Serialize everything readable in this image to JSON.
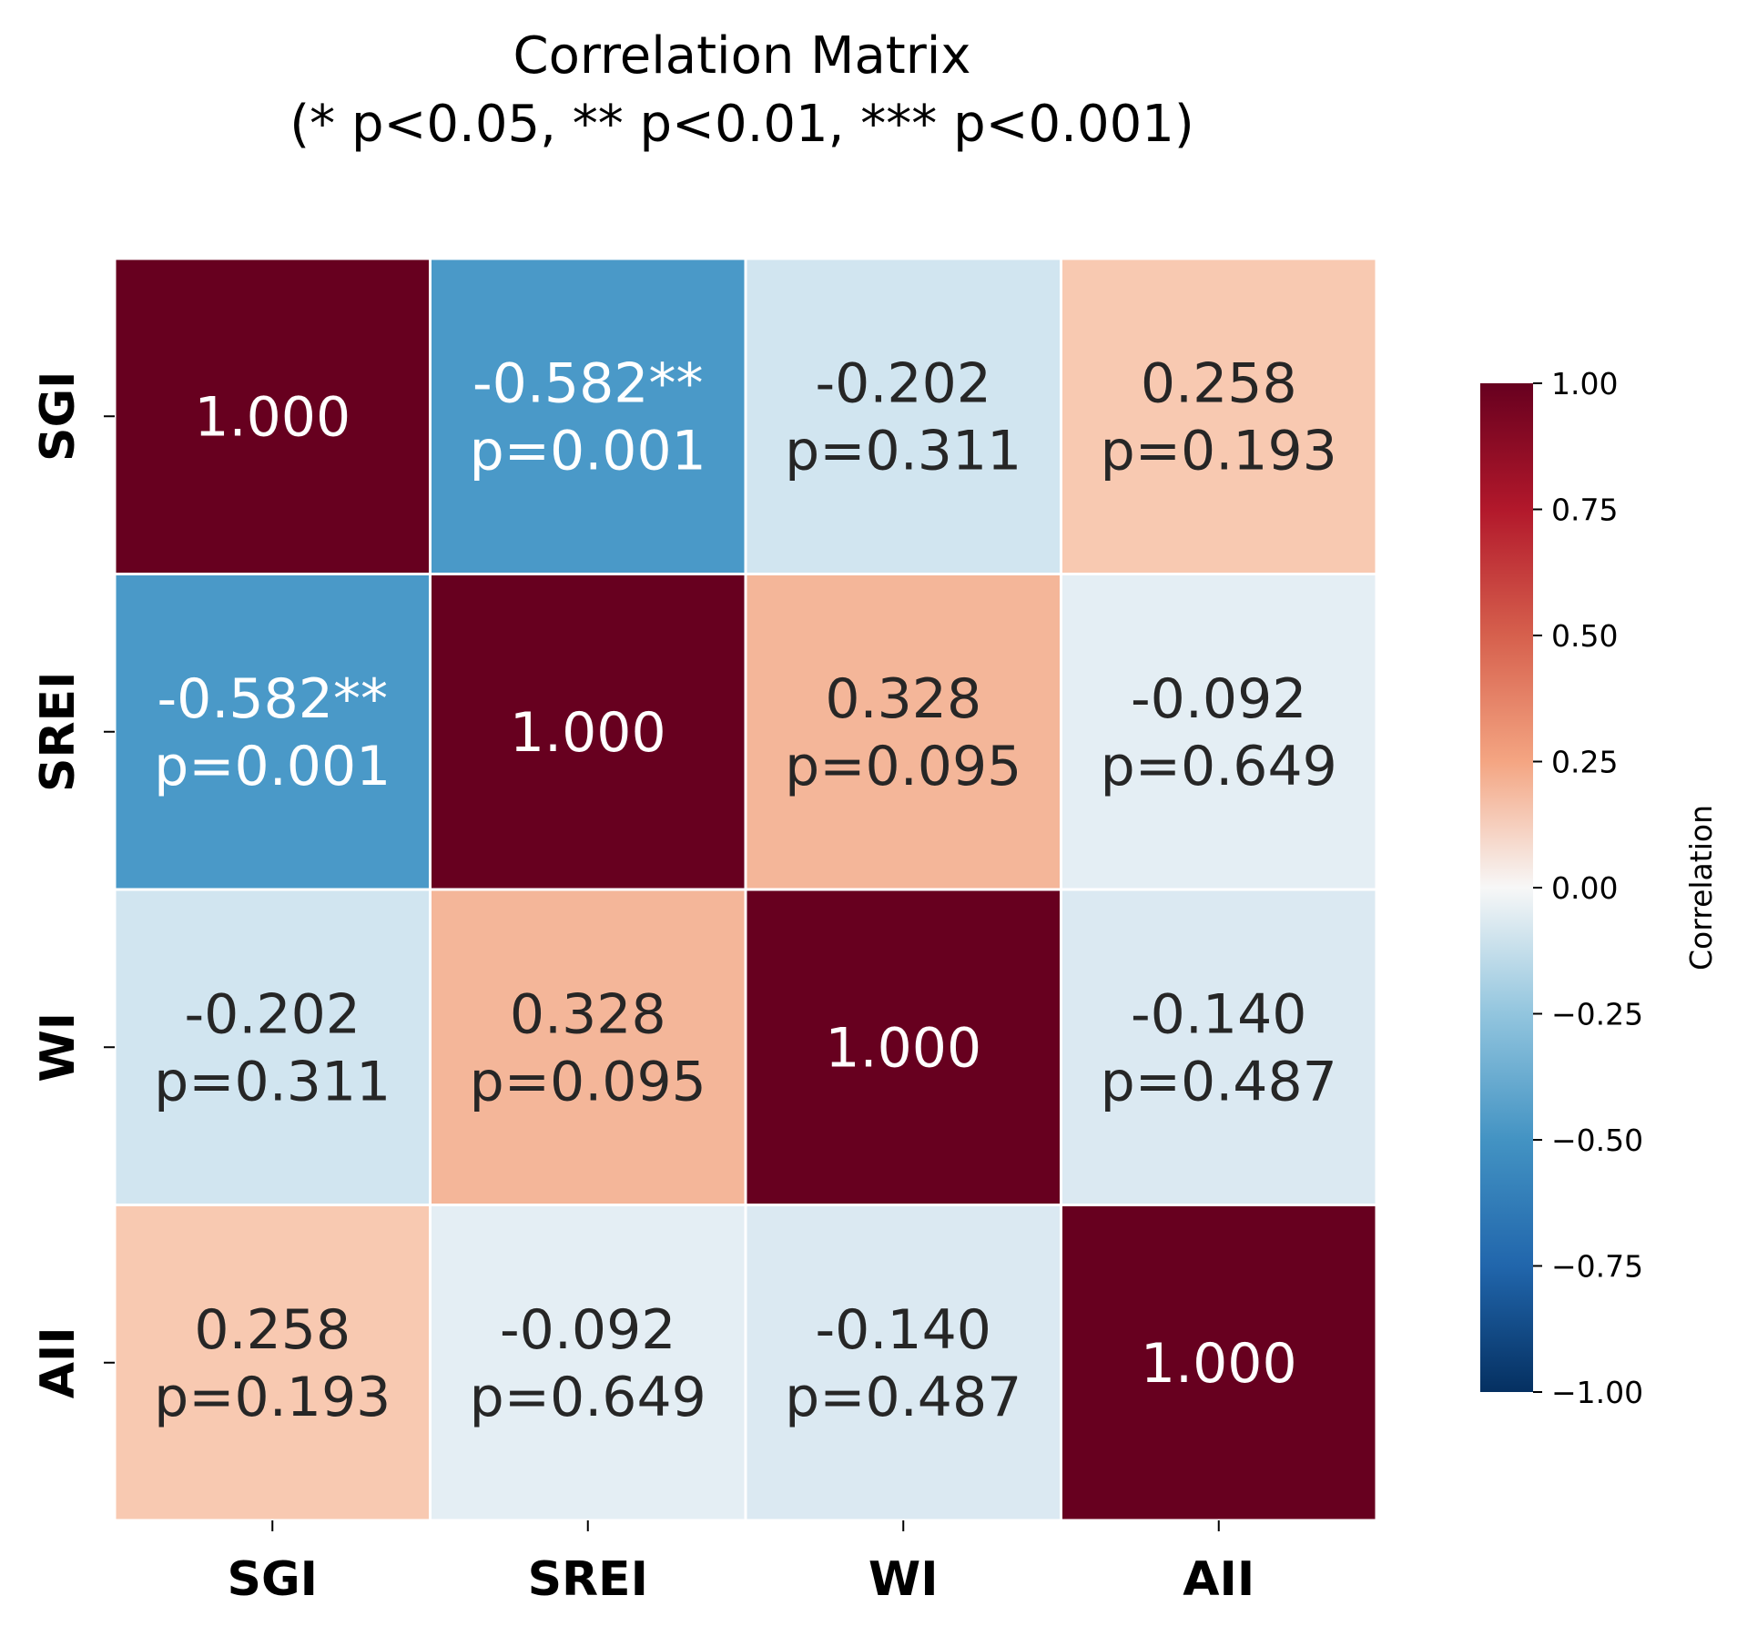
{
  "chart_data": {
    "type": "heatmap",
    "title_line1": "Correlation Matrix",
    "title_line2": "(* p<0.05, ** p<0.01, *** p<0.001)",
    "variables": [
      "SGI",
      "SREI",
      "WI",
      "AII"
    ],
    "correlations": [
      [
        1.0,
        -0.582,
        -0.202,
        0.258
      ],
      [
        -0.582,
        1.0,
        0.328,
        -0.092
      ],
      [
        -0.202,
        0.328,
        1.0,
        -0.14
      ],
      [
        0.258,
        -0.092,
        -0.14,
        1.0
      ]
    ],
    "cell_labels": [
      [
        [
          "1.000"
        ],
        [
          "-0.582**",
          "p=0.001"
        ],
        [
          "-0.202",
          "p=0.311"
        ],
        [
          "0.258",
          "p=0.193"
        ]
      ],
      [
        [
          "-0.582**",
          "p=0.001"
        ],
        [
          "1.000"
        ],
        [
          "0.328",
          "p=0.095"
        ],
        [
          "-0.092",
          "p=0.649"
        ]
      ],
      [
        [
          "-0.202",
          "p=0.311"
        ],
        [
          "0.328",
          "p=0.095"
        ],
        [
          "1.000"
        ],
        [
          "-0.140",
          "p=0.487"
        ]
      ],
      [
        [
          "0.258",
          "p=0.193"
        ],
        [
          "-0.092",
          "p=0.649"
        ],
        [
          "-0.140",
          "p=0.487"
        ],
        [
          "1.000"
        ]
      ]
    ],
    "colorbar": {
      "label": "Correlation",
      "range": [
        -1.0,
        1.0
      ],
      "ticks": [
        1.0,
        0.75,
        0.5,
        0.25,
        0.0,
        -0.25,
        -0.5,
        -0.75,
        -1.0
      ],
      "tick_labels": [
        "1.00",
        "0.75",
        "0.50",
        "0.25",
        "0.00",
        "−0.25",
        "−0.50",
        "−0.75",
        "−1.00"
      ],
      "colormap": "RdBu_r"
    },
    "colormap_stops": [
      {
        "v": -1.0,
        "color": "#053061"
      },
      {
        "v": -0.75,
        "color": "#2166ac"
      },
      {
        "v": -0.5,
        "color": "#4393c3"
      },
      {
        "v": -0.25,
        "color": "#92c5de"
      },
      {
        "v": 0.0,
        "color": "#f7f7f7"
      },
      {
        "v": 0.25,
        "color": "#f4a582"
      },
      {
        "v": 0.5,
        "color": "#d6604d"
      },
      {
        "v": 0.75,
        "color": "#b2182b"
      },
      {
        "v": 1.0,
        "color": "#67001f"
      }
    ],
    "cell_colors": [
      [
        "#67001f",
        "#4a99c8",
        "#d1e5f0",
        "#f8c9b1"
      ],
      [
        "#4a99c8",
        "#67001f",
        "#f4b699",
        "#e4eef4"
      ],
      [
        "#d1e5f0",
        "#f4b699",
        "#67001f",
        "#dbe9f2"
      ],
      [
        "#f8c9b1",
        "#e4eef4",
        "#dbe9f2",
        "#67001f"
      ]
    ],
    "text_colors": {
      "dark_background": "#ffffff",
      "light_background": "#262626"
    }
  }
}
